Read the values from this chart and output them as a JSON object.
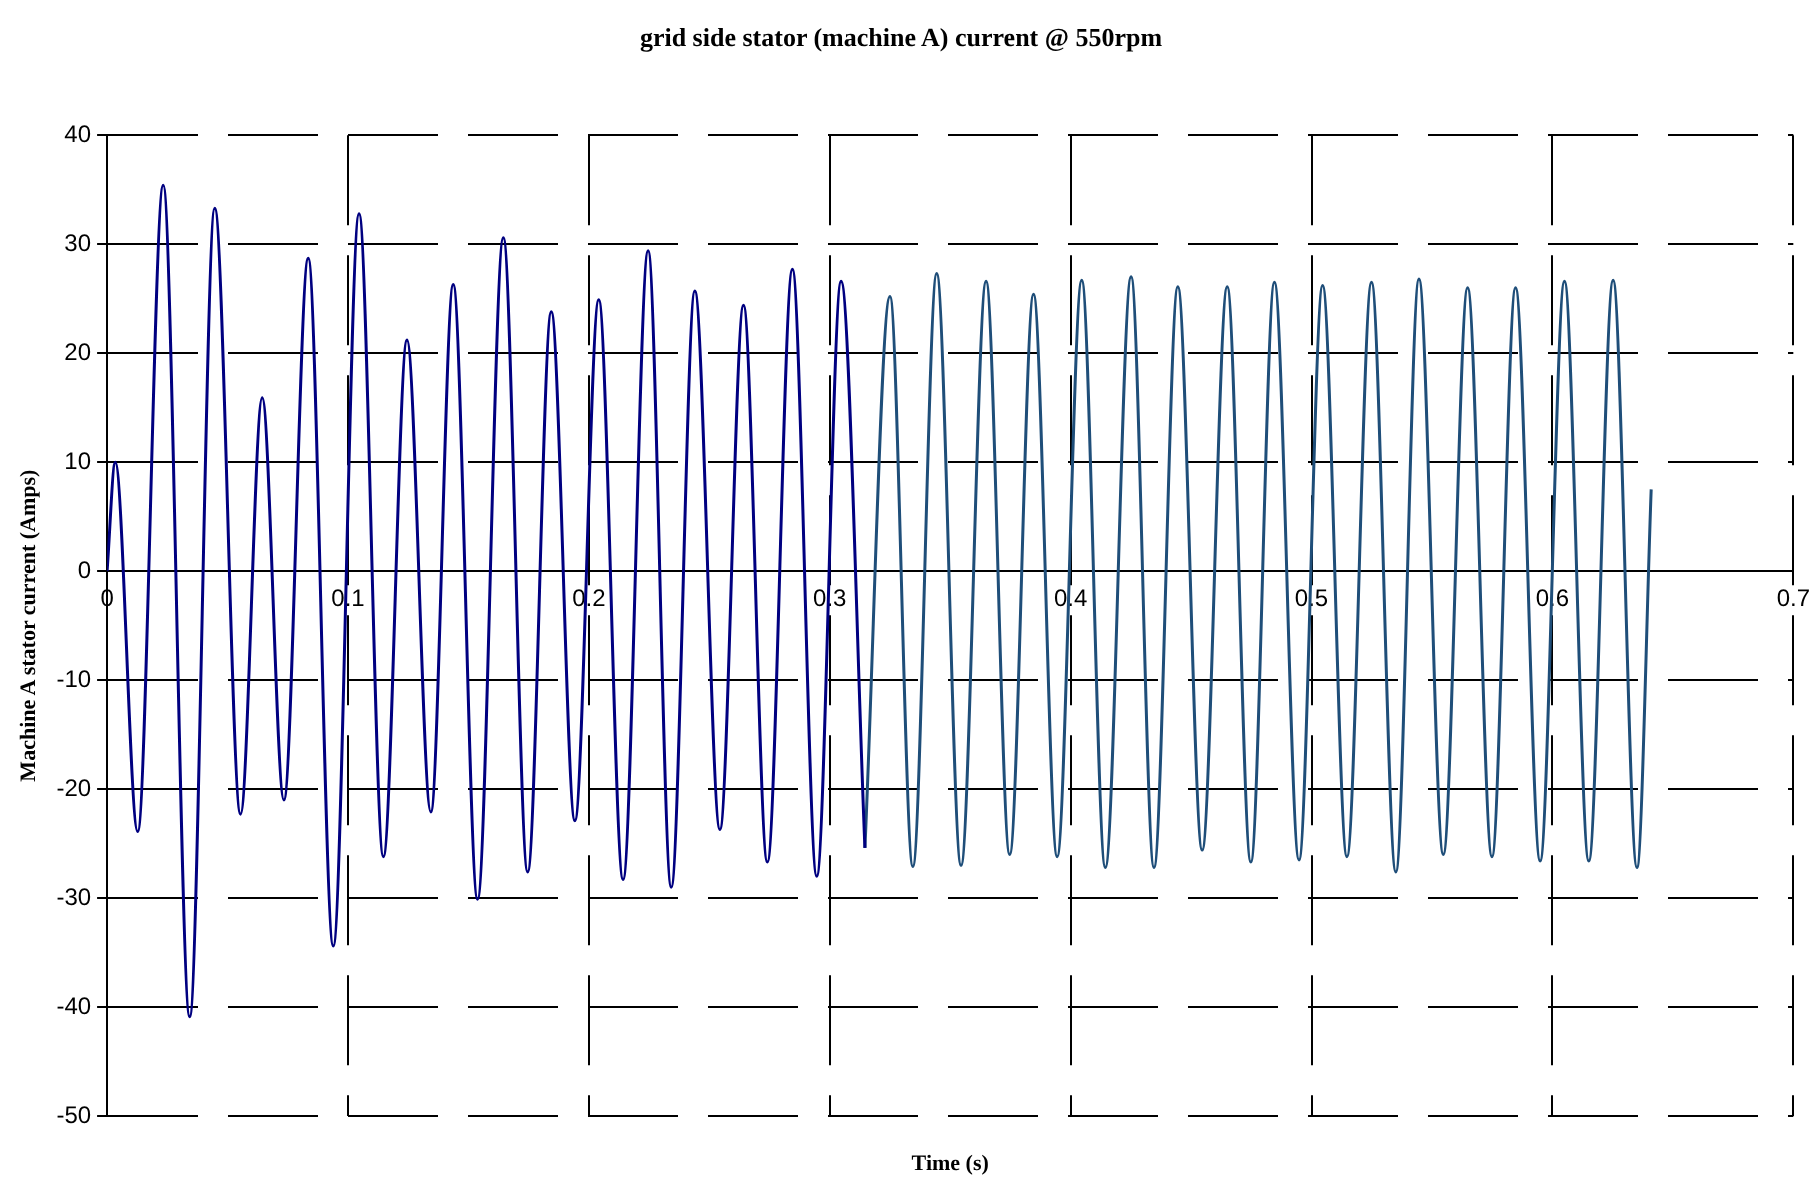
{
  "chart_data": {
    "type": "line",
    "title": "grid side stator (machine A) current @ 550rpm",
    "xlabel": "Time (s)",
    "ylabel": "Machine A stator current (Amps)",
    "xlim": [
      0,
      0.7
    ],
    "ylim": [
      -50,
      40
    ],
    "xticks": [
      0,
      0.1,
      0.2,
      0.3,
      0.4,
      0.5,
      0.6,
      0.7
    ],
    "yticks": [
      -50,
      -40,
      -30,
      -20,
      -10,
      0,
      10,
      20,
      30,
      40
    ],
    "grid": true,
    "legend": false,
    "marker": "none",
    "line_style": "solid",
    "series": [
      {
        "color": "#000080",
        "x": [
          0,
          0.0034,
          0.0127,
          0.0233,
          0.0343,
          0.0447,
          0.0554,
          0.0644,
          0.0734,
          0.0835,
          0.0939,
          0.1046,
          0.1147,
          0.1245,
          0.1344,
          0.1437,
          0.1538,
          0.1645,
          0.1746,
          0.1844,
          0.1942,
          0.2041,
          0.2142,
          0.2246,
          0.2342,
          0.244,
          0.2544,
          0.2642,
          0.2741,
          0.2845,
          0.2946,
          0.3047,
          0.3146
        ],
        "values": [
          0,
          10,
          -23.9,
          35.4,
          -40.9,
          33.3,
          -22.3,
          15.9,
          -21,
          28.7,
          -34.4,
          32.8,
          -26.2,
          21.2,
          -22.1,
          26.3,
          -30.1,
          30.6,
          -27.6,
          23.8,
          -22.9,
          24.9,
          -28.3,
          29.4,
          -29,
          25.7,
          -23.7,
          24.4,
          -26.7,
          27.7,
          -28,
          26.6,
          -25.4
        ]
      },
      {
        "color": "#1f4e79",
        "x": [
          0.3146,
          0.325,
          0.3345,
          0.3444,
          0.3545,
          0.3649,
          0.3747,
          0.3846,
          0.3944,
          0.4046,
          0.4144,
          0.4251,
          0.4346,
          0.4445,
          0.4546,
          0.465,
          0.4748,
          0.4846,
          0.4948,
          0.5046,
          0.5147,
          0.5249,
          0.535,
          0.5446,
          0.5547,
          0.5648,
          0.5749,
          0.5847,
          0.5949,
          0.605,
          0.6151,
          0.6252,
          0.6351,
          0.641
        ],
        "values": [
          -25.4,
          25.2,
          -27.1,
          27.3,
          -27,
          26.6,
          -26,
          25.4,
          -26.2,
          26.7,
          -27.2,
          27,
          -27.2,
          26.1,
          -25.6,
          26.1,
          -26.7,
          26.5,
          -26.5,
          26.2,
          -26.2,
          26.5,
          -27.6,
          26.8,
          -26,
          26,
          -26.2,
          26,
          -26.6,
          26.6,
          -26.6,
          26.7,
          -27.2,
          7.5
        ]
      }
    ]
  }
}
